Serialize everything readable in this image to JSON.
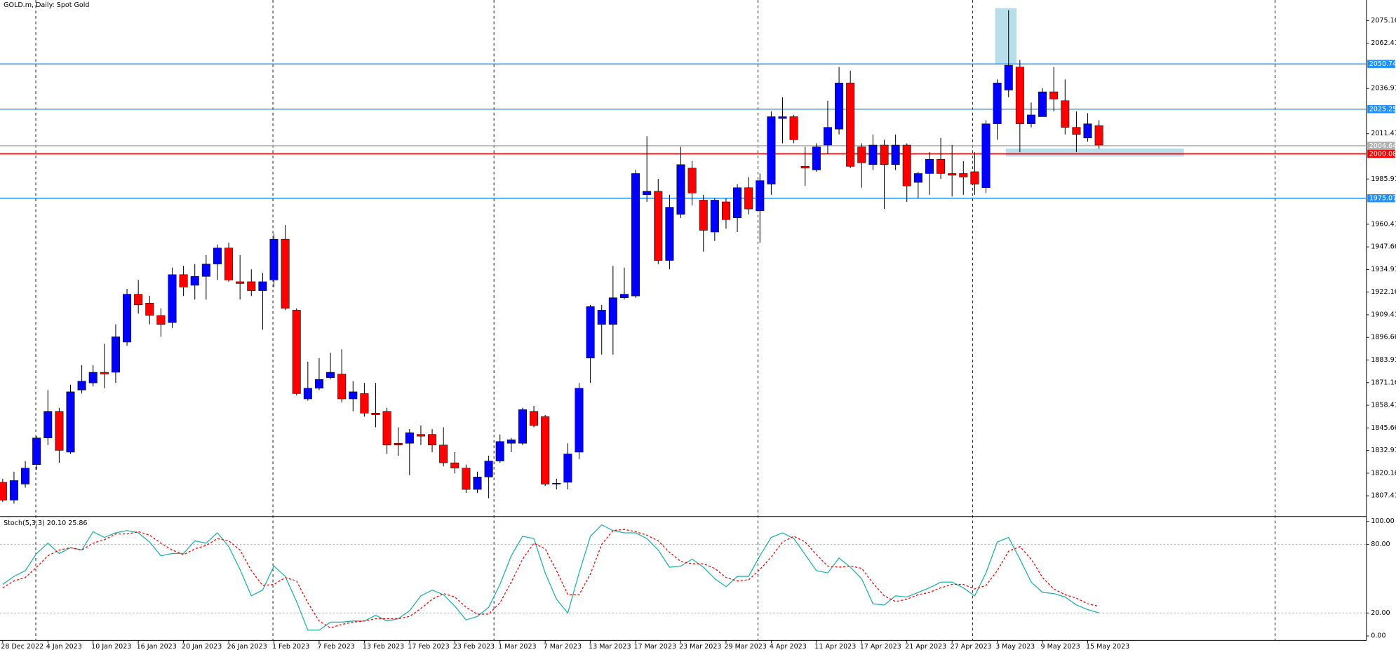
{
  "chart_data": [
    {
      "type": "candlestick",
      "title": "GOLD.m, Daily:  Spot Gold",
      "categories": [
        "28 Dec 2022",
        null,
        null,
        null,
        "4 Jan 2023",
        null,
        null,
        null,
        "10 Jan 2023",
        null,
        null,
        null,
        "16 Jan 2023",
        null,
        null,
        null,
        "20 Jan 2023",
        null,
        null,
        null,
        "26 Jan 2023",
        null,
        null,
        null,
        "1 Feb 2023",
        null,
        null,
        null,
        "7 Feb 2023",
        null,
        null,
        null,
        "13 Feb 2023",
        null,
        null,
        null,
        "17 Feb 2023",
        null,
        null,
        null,
        "23 Feb 2023",
        null,
        null,
        null,
        "1 Mar 2023",
        null,
        null,
        null,
        "7 Mar 2023",
        null,
        null,
        null,
        "13 Mar 2023",
        null,
        null,
        null,
        "17 Mar 2023",
        null,
        null,
        null,
        "23 Mar 2023",
        null,
        null,
        null,
        "29 Mar 2023",
        null,
        null,
        null,
        "4 Apr 2023",
        null,
        null,
        null,
        "11 Apr 2023",
        null,
        null,
        null,
        "17 Apr 2023",
        null,
        null,
        null,
        "21 Apr 2023",
        null,
        null,
        null,
        "27 Apr 2023",
        null,
        null,
        null,
        "3 May 2023",
        null,
        null,
        null,
        "9 May 2023",
        null,
        null,
        null,
        "15 May 2023",
        null
      ],
      "open": [
        1815,
        1805,
        1814,
        1825,
        1840,
        1855,
        1832,
        1867,
        1871,
        1877,
        1877,
        1894,
        1921,
        1916,
        1909,
        1905,
        1932,
        1926,
        1931,
        1938,
        1947,
        1928,
        1928,
        1923,
        1929,
        1952,
        1912,
        1862,
        1868,
        1874,
        1876,
        1862,
        1865,
        1854,
        1855,
        1837,
        1837,
        1842,
        1842,
        1836,
        1826,
        1823,
        1811,
        1818,
        1827,
        1837,
        1837,
        1855,
        1852,
        1814,
        1815,
        1832,
        1885,
        1904,
        1904,
        1919,
        1920,
        1977,
        1979,
        1940,
        1966,
        1992,
        1974,
        1956,
        1973,
        1964,
        1981,
        1968,
        1983,
        2020,
        2021,
        1993,
        1991,
        2005,
        2014,
        2040,
        2004,
        1994,
        2005,
        1994,
        2005,
        1984,
        1989,
        1997,
        1989,
        1989,
        1990,
        1981,
        2017,
        2036,
        2049,
        2017,
        2021,
        2035,
        2030,
        2015,
        2009,
        2016
      ],
      "high": [
        1817,
        1821,
        1827,
        1841,
        1867,
        1857,
        1870,
        1881,
        1881,
        1893,
        1904,
        1924,
        1929,
        1920,
        1913,
        1936,
        1937,
        1938,
        1943,
        1949,
        1950,
        1943,
        1935,
        1933,
        1955,
        1960,
        1913,
        1883,
        1885,
        1888,
        1890,
        1872,
        1871,
        1871,
        1857,
        1846,
        1845,
        1847,
        1845,
        1846,
        1832,
        1825,
        1821,
        1830,
        1842,
        1840,
        1857,
        1858,
        1853,
        1817,
        1837,
        1871,
        1915,
        1915,
        1937,
        1936,
        1991,
        2010,
        1986,
        1977,
        2004,
        1996,
        1977,
        1975,
        1975,
        1983,
        1987,
        1989,
        2024,
        2032,
        2022,
        2004,
        2006,
        2030,
        2049,
        2047,
        2006,
        2011,
        2008,
        2011,
        2006,
        1990,
        2001,
        2009,
        2005,
        1996,
        2001,
        2019,
        2042,
        2081,
        2053,
        2029,
        2037,
        2049,
        2042,
        2024,
        2023,
        2019
      ],
      "low": [
        1804,
        1803,
        1812,
        1822,
        1836,
        1826,
        1831,
        1865,
        1869,
        1868,
        1871,
        1892,
        1910,
        1904,
        1897,
        1902,
        1920,
        1918,
        1918,
        1929,
        1928,
        1918,
        1920,
        1901,
        1925,
        1912,
        1864,
        1861,
        1867,
        1873,
        1860,
        1855,
        1852,
        1846,
        1831,
        1830,
        1819,
        1836,
        1832,
        1824,
        1820,
        1809,
        1809,
        1806,
        1826,
        1832,
        1836,
        1846,
        1813,
        1811,
        1811,
        1828,
        1871,
        1887,
        1887,
        1918,
        1919,
        1973,
        1938,
        1935,
        1964,
        1971,
        1945,
        1951,
        1958,
        1956,
        1966,
        1950,
        1977,
        2006,
        2006,
        1982,
        1990,
        2000,
        2011,
        1992,
        1981,
        1991,
        1969,
        1991,
        1973,
        1975,
        1977,
        1986,
        1976,
        1977,
        1977,
        1978,
        2008,
        2032,
        2001,
        2015,
        2021,
        2024,
        2011,
        2001,
        2007,
        2003
      ],
      "close": [
        1805,
        1816,
        1823,
        1840,
        1855,
        1833,
        1866,
        1872,
        1877,
        1876,
        1897,
        1921,
        1915,
        1909,
        1904,
        1932,
        1925,
        1931,
        1938,
        1947,
        1929,
        1927,
        1923,
        1928,
        1952,
        1913,
        1865,
        1868,
        1873,
        1877,
        1862,
        1866,
        1854,
        1853,
        1836,
        1836,
        1843,
        1841,
        1836,
        1826,
        1823,
        1811,
        1818,
        1827,
        1838,
        1839,
        1856,
        1847,
        1814,
        1814.5,
        1831,
        1868,
        1914,
        1912,
        1919,
        1921,
        1989,
        1979,
        1940,
        1970,
        1994,
        1978,
        1957,
        1974,
        1963,
        1981,
        1969,
        1985,
        2021,
        2021,
        2008,
        1992,
        2004,
        2015,
        2040,
        1993,
        1995,
        2005,
        1994,
        2005,
        1982,
        1989,
        1997,
        1989,
        1988,
        1987,
        1983,
        2017,
        2040,
        2050,
        2017,
        2022,
        2035,
        2031,
        2015,
        2011,
        2017,
        2005
      ],
      "up_color": "#0000ff",
      "down_color": "#ff0000",
      "ylim": [
        1796,
        2086.75
      ],
      "yticks": [
        2075.16,
        2062.41,
        2036.91,
        2011.41,
        1985.91,
        1960.41,
        1947.66,
        1934.91,
        1922.16,
        1909.41,
        1896.66,
        1883.91,
        1871.16,
        1858.41,
        1845.66,
        1832.91,
        1820.16,
        1807.41
      ],
      "levels": [
        {
          "value": 2050.74,
          "color": "#1e90ff"
        },
        {
          "value": 2025.25,
          "color": "#1e90ff"
        },
        {
          "value": 2004.64,
          "color": "#b0b0b0"
        },
        {
          "value": 2000.08,
          "color": "#ff0000"
        },
        {
          "value": 1975.07,
          "color": "#1e90ff"
        }
      ]
    },
    {
      "type": "line",
      "title": "Stoch(5,3,3) 20.10 25.86",
      "series": [
        {
          "color": "#20b2aa",
          "values": [
            45,
            52,
            57,
            72,
            81,
            72,
            77,
            75,
            91,
            86,
            90,
            92,
            90,
            82,
            70,
            72,
            72,
            83,
            81,
            90,
            78,
            58,
            35,
            40,
            61,
            52,
            30,
            5,
            5,
            12,
            12,
            13,
            13,
            18,
            13,
            15,
            22,
            35,
            40,
            36,
            26,
            14,
            17,
            25,
            45,
            70,
            87,
            85,
            55,
            32,
            20,
            55,
            87,
            97,
            92,
            90,
            90,
            85,
            75,
            60,
            61,
            67,
            60,
            50,
            43,
            52,
            52,
            70,
            86,
            90,
            85,
            71,
            57,
            55,
            68,
            60,
            50,
            28,
            27,
            35,
            34,
            38,
            42,
            47,
            47,
            42,
            35,
            55,
            82,
            86,
            67,
            47,
            38,
            37,
            34,
            27,
            23,
            20.1
          ]
        },
        {
          "color": "#ff0000",
          "dashed": true,
          "values": [
            42,
            48,
            51,
            60,
            70,
            75,
            77,
            75,
            81,
            84,
            89,
            89,
            91,
            88,
            81,
            75,
            71,
            76,
            79,
            85,
            83,
            75,
            57,
            44,
            45,
            51,
            48,
            29,
            13,
            7,
            10,
            12,
            13,
            15,
            15,
            15,
            17,
            24,
            32,
            37,
            34,
            25,
            19,
            19,
            29,
            47,
            67,
            81,
            76,
            57,
            36,
            36,
            54,
            80,
            92,
            93,
            91,
            88,
            83,
            73,
            65,
            63,
            63,
            59,
            51,
            48,
            49,
            58,
            69,
            82,
            87,
            82,
            71,
            61,
            60,
            61,
            59,
            46,
            35,
            30,
            32,
            36,
            38,
            42,
            45,
            45,
            41,
            44,
            57,
            74,
            78,
            67,
            51,
            41,
            36,
            33,
            28,
            25.86
          ]
        }
      ],
      "ylim": [
        -3.9,
        103.1
      ],
      "yticks": [
        {
          "value": 100,
          "label": "100.00"
        },
        {
          "value": 80,
          "label": "80.00"
        },
        {
          "value": 20,
          "label": "20.00"
        },
        {
          "value": 0,
          "label": "0.00"
        }
      ],
      "levels": [
        80,
        20
      ]
    }
  ]
}
